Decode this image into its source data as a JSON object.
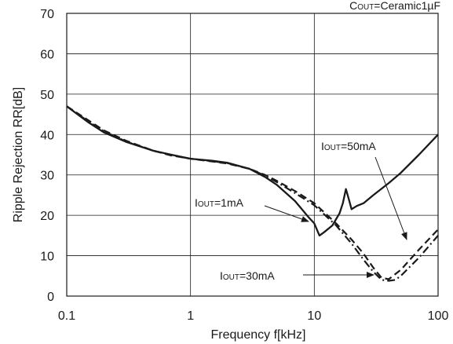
{
  "chart_data": {
    "type": "line",
    "title": "",
    "condition_label": {
      "main": "C",
      "sub": "OUT",
      "rest": "=Ceramic1µF"
    },
    "xlabel": "Frequency f[kHz]",
    "ylabel": "Ripple Rejection RR[dB]",
    "x_scale": "log",
    "xlim": [
      0.1,
      100
    ],
    "ylim": [
      0,
      70
    ],
    "x_ticks": [
      0.1,
      1,
      10,
      100
    ],
    "x_tick_labels": [
      "0.1",
      "1",
      "10",
      "100"
    ],
    "y_ticks": [
      0,
      10,
      20,
      30,
      40,
      50,
      60,
      70
    ],
    "y_tick_labels": [
      "0",
      "10",
      "20",
      "30",
      "40",
      "50",
      "60",
      "70"
    ],
    "grid": true,
    "legend": "none",
    "series": [
      {
        "name": "IOUT=1mA",
        "style": "dashed",
        "points": [
          [
            0.1,
            47
          ],
          [
            0.15,
            43.5
          ],
          [
            0.2,
            41
          ],
          [
            0.3,
            38.5
          ],
          [
            0.5,
            36
          ],
          [
            0.7,
            34.8
          ],
          [
            1,
            34
          ],
          [
            1.5,
            33.3
          ],
          [
            2,
            32.8
          ],
          [
            3,
            31.5
          ],
          [
            4,
            30
          ],
          [
            5,
            28.5
          ],
          [
            7,
            26
          ],
          [
            10,
            23
          ],
          [
            15,
            18
          ],
          [
            20,
            14
          ],
          [
            25,
            10.5
          ],
          [
            30,
            7
          ],
          [
            35,
            4.5
          ],
          [
            40,
            4.2
          ],
          [
            50,
            6.5
          ],
          [
            70,
            11.5
          ],
          [
            100,
            16.5
          ]
        ]
      },
      {
        "name": "IOUT=50mA",
        "style": "solid",
        "points": [
          [
            0.1,
            47
          ],
          [
            0.15,
            43
          ],
          [
            0.2,
            40.5
          ],
          [
            0.3,
            38.2
          ],
          [
            0.5,
            36
          ],
          [
            0.7,
            35
          ],
          [
            1,
            34
          ],
          [
            1.5,
            33.5
          ],
          [
            2,
            33
          ],
          [
            3,
            31.5
          ],
          [
            4,
            29.5
          ],
          [
            5,
            27.5
          ],
          [
            7,
            23.5
          ],
          [
            9,
            19.5
          ],
          [
            10,
            18
          ],
          [
            11,
            15
          ],
          [
            12,
            15.8
          ],
          [
            14,
            17.5
          ],
          [
            16,
            20.5
          ],
          [
            17,
            23
          ],
          [
            18,
            26.5
          ],
          [
            19,
            24
          ],
          [
            20,
            21.5
          ],
          [
            22,
            22.3
          ],
          [
            25,
            23
          ],
          [
            30,
            25
          ],
          [
            40,
            28
          ],
          [
            50,
            30.5
          ],
          [
            70,
            35
          ],
          [
            100,
            40
          ]
        ]
      },
      {
        "name": "IOUT=30mA",
        "style": "dashdot",
        "points": [
          [
            0.1,
            47
          ],
          [
            0.15,
            43.2
          ],
          [
            0.2,
            40.8
          ],
          [
            0.3,
            38.3
          ],
          [
            0.5,
            36
          ],
          [
            0.7,
            34.9
          ],
          [
            1,
            34
          ],
          [
            1.5,
            33.4
          ],
          [
            2,
            32.9
          ],
          [
            3,
            31.5
          ],
          [
            4,
            29.8
          ],
          [
            5,
            28.2
          ],
          [
            7,
            25.5
          ],
          [
            10,
            22.5
          ],
          [
            15,
            17.5
          ],
          [
            20,
            13
          ],
          [
            25,
            9
          ],
          [
            30,
            6
          ],
          [
            35,
            4
          ],
          [
            40,
            3.8
          ],
          [
            45,
            4
          ],
          [
            50,
            5
          ],
          [
            70,
            9.5
          ],
          [
            100,
            15
          ]
        ]
      }
    ],
    "annotations": [
      {
        "main": "I",
        "sub": "OUT",
        "rest": "=50mA"
      },
      {
        "main": "I",
        "sub": "OUT",
        "rest": "=1mA"
      },
      {
        "main": "I",
        "sub": "OUT",
        "rest": "=30mA"
      }
    ]
  }
}
